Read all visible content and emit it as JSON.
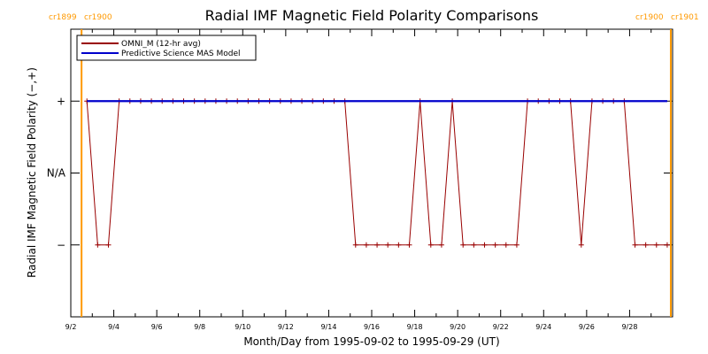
{
  "chart_data": {
    "type": "line",
    "title": "Radial IMF Magnetic Field Polarity Comparisons",
    "xlabel": "Month/Day from 1995-09-02 to 1995-09-29 (UT)",
    "ylabel": "Radial IMF Magnetic Field Polarity (−,+)",
    "xlim": [
      "1995-09-02",
      "1995-09-30"
    ],
    "x_ticks": [
      "9/2",
      "9/4",
      "9/6",
      "9/8",
      "9/10",
      "9/12",
      "9/14",
      "9/16",
      "9/18",
      "9/20",
      "9/22",
      "9/24",
      "9/26",
      "9/28"
    ],
    "y_categories": [
      "−",
      "N/A",
      "+"
    ],
    "y_values": [
      -1,
      0,
      1
    ],
    "ylim": [
      -2,
      2
    ],
    "carrington_markers": [
      {
        "time": "1995-09-02T12:00",
        "label_left": "cr1899",
        "label_right": "cr1900",
        "color": "#ff9900"
      },
      {
        "time": "1995-09-29T22:00",
        "label_left": "cr1900",
        "label_right": "cr1901",
        "color": "#ff9900"
      }
    ],
    "legend_position": "top-left",
    "series": [
      {
        "name": "OMNI_M (12-hr avg)",
        "color": "#990000",
        "marker": "plus",
        "x": [
          "1995-09-02T18:00",
          "1995-09-03T06:00",
          "1995-09-03T18:00",
          "1995-09-04T06:00",
          "1995-09-04T18:00",
          "1995-09-05T06:00",
          "1995-09-05T18:00",
          "1995-09-06T06:00",
          "1995-09-06T18:00",
          "1995-09-07T06:00",
          "1995-09-07T18:00",
          "1995-09-08T06:00",
          "1995-09-08T18:00",
          "1995-09-09T06:00",
          "1995-09-09T18:00",
          "1995-09-10T06:00",
          "1995-09-10T18:00",
          "1995-09-11T06:00",
          "1995-09-11T18:00",
          "1995-09-12T06:00",
          "1995-09-12T18:00",
          "1995-09-13T06:00",
          "1995-09-13T18:00",
          "1995-09-14T06:00",
          "1995-09-14T18:00",
          "1995-09-15T06:00",
          "1995-09-15T18:00",
          "1995-09-16T06:00",
          "1995-09-16T18:00",
          "1995-09-17T06:00",
          "1995-09-17T18:00",
          "1995-09-18T06:00",
          "1995-09-18T18:00",
          "1995-09-19T06:00",
          "1995-09-19T18:00",
          "1995-09-20T06:00",
          "1995-09-20T18:00",
          "1995-09-21T06:00",
          "1995-09-21T18:00",
          "1995-09-22T06:00",
          "1995-09-22T18:00",
          "1995-09-23T06:00",
          "1995-09-23T18:00",
          "1995-09-24T06:00",
          "1995-09-24T18:00",
          "1995-09-25T06:00",
          "1995-09-25T18:00",
          "1995-09-26T06:00",
          "1995-09-26T18:00",
          "1995-09-27T06:00",
          "1995-09-27T18:00",
          "1995-09-28T06:00",
          "1995-09-28T18:00",
          "1995-09-29T06:00",
          "1995-09-29T18:00"
        ],
        "y": [
          1,
          -1,
          -1,
          1,
          1,
          1,
          1,
          1,
          1,
          1,
          1,
          1,
          1,
          1,
          1,
          1,
          1,
          1,
          1,
          1,
          1,
          1,
          1,
          1,
          1,
          -1,
          -1,
          -1,
          -1,
          -1,
          -1,
          1,
          -1,
          -1,
          1,
          -1,
          -1,
          -1,
          -1,
          -1,
          -1,
          1,
          1,
          1,
          1,
          1,
          -1,
          1,
          1,
          1,
          1,
          -1,
          -1,
          -1,
          -1
        ]
      },
      {
        "name": "Predictive Science MAS Model",
        "color": "#0000cc",
        "x": [
          "1995-09-02T18:00",
          "1995-09-29T18:00"
        ],
        "y": [
          1,
          1
        ]
      }
    ]
  }
}
